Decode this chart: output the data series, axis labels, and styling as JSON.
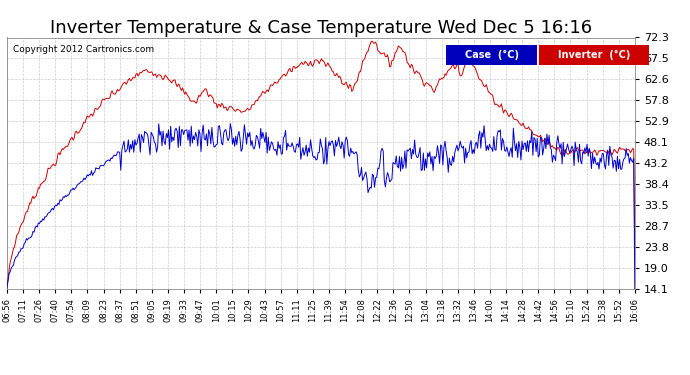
{
  "title": "Inverter Temperature & Case Temperature Wed Dec 5 16:16",
  "copyright": "Copyright 2012 Cartronics.com",
  "yticks": [
    14.1,
    19.0,
    23.8,
    28.7,
    33.5,
    38.4,
    43.2,
    48.1,
    52.9,
    57.8,
    62.6,
    67.5,
    72.3
  ],
  "xtick_labels": [
    "06:56",
    "07:11",
    "07:26",
    "07:40",
    "07:54",
    "08:09",
    "08:23",
    "08:37",
    "08:51",
    "09:05",
    "09:19",
    "09:33",
    "09:47",
    "10:01",
    "10:15",
    "10:29",
    "10:43",
    "10:57",
    "11:11",
    "11:25",
    "11:39",
    "11:54",
    "12:08",
    "12:22",
    "12:36",
    "12:50",
    "13:04",
    "13:18",
    "13:32",
    "13:46",
    "14:00",
    "14:14",
    "14:28",
    "14:42",
    "14:56",
    "15:10",
    "15:24",
    "15:38",
    "15:52",
    "16:06"
  ],
  "case_color": "#0000cc",
  "inverter_color": "#cc0000",
  "background_color": "#ffffff",
  "grid_color": "#aaaaaa",
  "title_fontsize": 13,
  "ymin": 14.1,
  "ymax": 72.3,
  "legend_case_bg": "#0000bb",
  "legend_inv_bg": "#cc0000",
  "legend_case_text": "Case  (°C)",
  "legend_inv_text": "Inverter  (°C)"
}
